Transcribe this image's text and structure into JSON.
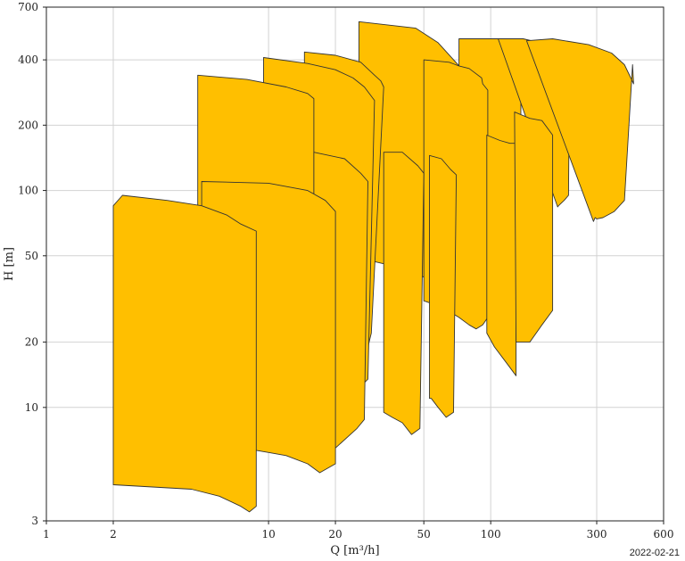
{
  "chart_data": {
    "type": "area",
    "x_scale": "log",
    "y_scale": "log",
    "xlim": [
      1,
      600
    ],
    "ylim": [
      3,
      700
    ],
    "xticks": [
      1,
      2,
      10,
      20,
      50,
      100,
      300,
      600
    ],
    "yticks": [
      3,
      10,
      20,
      50,
      100,
      200,
      400,
      700
    ],
    "xtick_labels": [
      "1",
      "2",
      "10",
      "20",
      "50",
      "100",
      "300",
      "600"
    ],
    "ytick_labels": [
      "3",
      "10",
      "20",
      "50",
      "100",
      "200",
      "400",
      "700"
    ],
    "xlabel": "Q [m³/h]",
    "ylabel": "H [m]",
    "grid": true,
    "fill_color": "#ffbf00",
    "stroke_color": "#333333",
    "regions": [
      {
        "points": [
          [
            25.5,
            600
          ],
          [
            46,
            560
          ],
          [
            58,
            480
          ],
          [
            73,
            370
          ],
          [
            78,
            280
          ],
          [
            83,
            210
          ],
          [
            93,
            31
          ],
          [
            90,
            29
          ],
          [
            70,
            33
          ],
          [
            55,
            38
          ],
          [
            43,
            43
          ],
          [
            36,
            45
          ],
          [
            30,
            47
          ],
          [
            26.5,
            48
          ],
          [
            25.5,
            48
          ],
          [
            25.5,
            560
          ]
        ]
      },
      {
        "points": [
          [
            72,
            500
          ],
          [
            108,
            500
          ],
          [
            124,
            460
          ],
          [
            137,
            400
          ],
          [
            136,
            50
          ],
          [
            120,
            42
          ],
          [
            100,
            38
          ],
          [
            76,
            36
          ],
          [
            72,
            36
          ]
        ]
      },
      {
        "points": [
          [
            108,
            500
          ],
          [
            140,
            500
          ],
          [
            167,
            480
          ],
          [
            196,
            440
          ],
          [
            206,
            410
          ],
          [
            210,
            350
          ],
          [
            220,
            320
          ],
          [
            226,
            300
          ],
          [
            224,
            95
          ],
          [
            214,
            90
          ],
          [
            202,
            85
          ],
          [
            200,
            84
          ]
        ]
      },
      {
        "points": [
          [
            145,
            490
          ],
          [
            190,
            500
          ],
          [
            276,
            470
          ],
          [
            350,
            430
          ],
          [
            400,
            380
          ],
          [
            440,
            310
          ],
          [
            435,
            380
          ],
          [
            400,
            90
          ],
          [
            360,
            80
          ],
          [
            320,
            75
          ],
          [
            300,
            74
          ],
          [
            295,
            75
          ],
          [
            290,
            72
          ]
        ]
      },
      {
        "points": [
          [
            14.5,
            435
          ],
          [
            20,
            420
          ],
          [
            26,
            390
          ],
          [
            30,
            340
          ],
          [
            32,
            320
          ],
          [
            33,
            300
          ],
          [
            29,
            22
          ],
          [
            28,
            19
          ],
          [
            27,
            15
          ],
          [
            25,
            16
          ],
          [
            20,
            19
          ],
          [
            16,
            22
          ],
          [
            14.5,
            23
          ],
          [
            14.5,
            430
          ]
        ]
      },
      {
        "points": [
          [
            50,
            400
          ],
          [
            65,
            390
          ],
          [
            72,
            375
          ],
          [
            80,
            365
          ],
          [
            91,
            330
          ],
          [
            92,
            310
          ],
          [
            97,
            290
          ],
          [
            97,
            26
          ],
          [
            92,
            24
          ],
          [
            86,
            23
          ],
          [
            80,
            24
          ],
          [
            72,
            26
          ],
          [
            64,
            28
          ],
          [
            55,
            30
          ],
          [
            50,
            31
          ]
        ]
      },
      {
        "points": [
          [
            9.5,
            410
          ],
          [
            15,
            385
          ],
          [
            20,
            360
          ],
          [
            24,
            330
          ],
          [
            27,
            300
          ],
          [
            30,
            260
          ],
          [
            28,
            13.5
          ],
          [
            26,
            12.5
          ],
          [
            23,
            14
          ],
          [
            20,
            16
          ],
          [
            15,
            18
          ],
          [
            10,
            20
          ],
          [
            9.5,
            21
          ]
        ]
      },
      {
        "points": [
          [
            4.8,
            340
          ],
          [
            8,
            325
          ],
          [
            12,
            300
          ],
          [
            15,
            280
          ],
          [
            16,
            265
          ],
          [
            16,
            22
          ],
          [
            15,
            18
          ],
          [
            12,
            15
          ],
          [
            9,
            13
          ],
          [
            6,
            12
          ],
          [
            4.8,
            12
          ],
          [
            4.8,
            270
          ]
        ]
      },
      {
        "points": [
          [
            16,
            150
          ],
          [
            22,
            140
          ],
          [
            26,
            120
          ],
          [
            28,
            110
          ],
          [
            27,
            8.8
          ],
          [
            25,
            8
          ],
          [
            20,
            6.5
          ],
          [
            16,
            7
          ],
          [
            16,
            140
          ]
        ]
      },
      {
        "points": [
          [
            33,
            150
          ],
          [
            40,
            150
          ],
          [
            47,
            130
          ],
          [
            50,
            120
          ],
          [
            48,
            8
          ],
          [
            44,
            7.5
          ],
          [
            40,
            8.5
          ],
          [
            36,
            9
          ],
          [
            33,
            9.5
          ],
          [
            33,
            145
          ]
        ]
      },
      {
        "points": [
          [
            53,
            145
          ],
          [
            60,
            140
          ],
          [
            66,
            125
          ],
          [
            70,
            118
          ],
          [
            68,
            9.5
          ],
          [
            63,
            9
          ],
          [
            58,
            10
          ],
          [
            54,
            11
          ],
          [
            53,
            11
          ],
          [
            53,
            140
          ]
        ]
      },
      {
        "points": [
          [
            96,
            180
          ],
          [
            110,
            170
          ],
          [
            122,
            165
          ],
          [
            130,
            165
          ],
          [
            130,
            14
          ],
          [
            118,
            16
          ],
          [
            104,
            19
          ],
          [
            96,
            22
          ]
        ]
      },
      {
        "points": [
          [
            128,
            230
          ],
          [
            150,
            215
          ],
          [
            170,
            210
          ],
          [
            190,
            180
          ],
          [
            190,
            28
          ],
          [
            170,
            24
          ],
          [
            150,
            20
          ],
          [
            130,
            20
          ]
        ]
      },
      {
        "points": [
          [
            5,
            110
          ],
          [
            10,
            108
          ],
          [
            15,
            100
          ],
          [
            18,
            90
          ],
          [
            20,
            80
          ],
          [
            20,
            5.5
          ],
          [
            17,
            5
          ],
          [
            15,
            5.5
          ],
          [
            12,
            6
          ],
          [
            10,
            6.2
          ],
          [
            7,
            6.6
          ],
          [
            5,
            6.6
          ]
        ]
      },
      {
        "points": [
          [
            2,
            85
          ],
          [
            2.2,
            95
          ],
          [
            3.5,
            90
          ],
          [
            5,
            85
          ],
          [
            6.5,
            77
          ],
          [
            7.5,
            70
          ],
          [
            8.8,
            65
          ],
          [
            8.8,
            3.5
          ],
          [
            8.2,
            3.3
          ],
          [
            7.5,
            3.5
          ],
          [
            6,
            3.9
          ],
          [
            4.5,
            4.2
          ],
          [
            3,
            4.3
          ],
          [
            2,
            4.4
          ]
        ]
      }
    ]
  },
  "footer": {
    "date": "2022-02-21"
  }
}
